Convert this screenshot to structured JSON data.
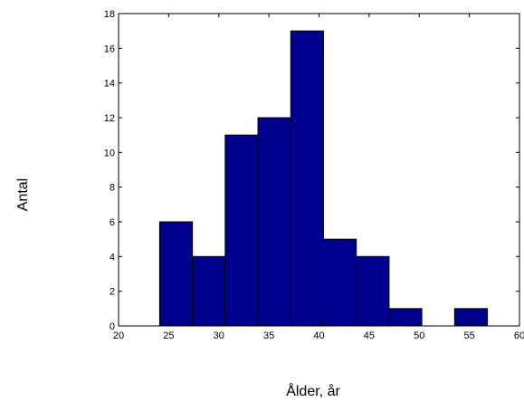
{
  "chart_data": {
    "type": "bar",
    "subtype": "histogram",
    "title": "",
    "xlabel": "Ålder, år",
    "ylabel": "Antal",
    "xlim": [
      20,
      60
    ],
    "ylim": [
      0,
      18
    ],
    "xticks": [
      20,
      25,
      30,
      35,
      40,
      45,
      50,
      55,
      60
    ],
    "yticks": [
      0,
      2,
      4,
      6,
      8,
      10,
      12,
      14,
      16,
      18
    ],
    "bin_width": 3.27,
    "bins": [
      {
        "start": 24.1,
        "end": 27.37,
        "count": 6
      },
      {
        "start": 27.37,
        "end": 30.64,
        "count": 4
      },
      {
        "start": 30.64,
        "end": 33.91,
        "count": 11
      },
      {
        "start": 33.91,
        "end": 37.18,
        "count": 12
      },
      {
        "start": 37.18,
        "end": 40.45,
        "count": 17
      },
      {
        "start": 40.45,
        "end": 43.72,
        "count": 5
      },
      {
        "start": 43.72,
        "end": 46.99,
        "count": 4
      },
      {
        "start": 46.99,
        "end": 50.26,
        "count": 1
      },
      {
        "start": 50.26,
        "end": 53.53,
        "count": 0
      },
      {
        "start": 53.53,
        "end": 56.8,
        "count": 1
      }
    ],
    "bar_color": "#00008f",
    "grid": false,
    "legend": "none"
  }
}
